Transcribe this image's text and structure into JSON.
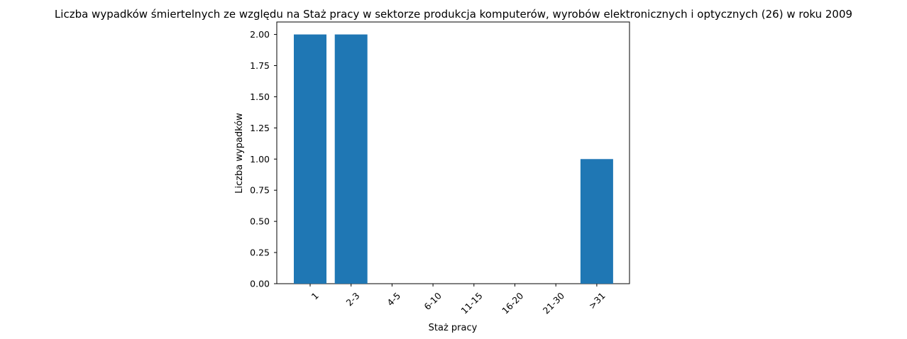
{
  "chart_data": {
    "type": "bar",
    "title": "Liczba wypadków śmiertelnych ze względu na Staż pracy w sektorze produkcja komputerów, wyrobów elektronicznych i optycznych (26)  w roku 2009",
    "xlabel": "Staż pracy",
    "ylabel": "Liczba wypadków",
    "categories": [
      "1",
      "2-3",
      "4-5",
      "6-10",
      "11-15",
      "16-20",
      "21-30",
      ">31"
    ],
    "values": [
      2,
      2,
      0,
      0,
      0,
      0,
      0,
      1
    ],
    "ylim": [
      0,
      2.1
    ],
    "yticks": [
      "0.00",
      "0.25",
      "0.50",
      "0.75",
      "1.00",
      "1.25",
      "1.50",
      "1.75",
      "2.00"
    ],
    "grid": false,
    "legend": "none",
    "bar_color": "#1f77b4"
  }
}
